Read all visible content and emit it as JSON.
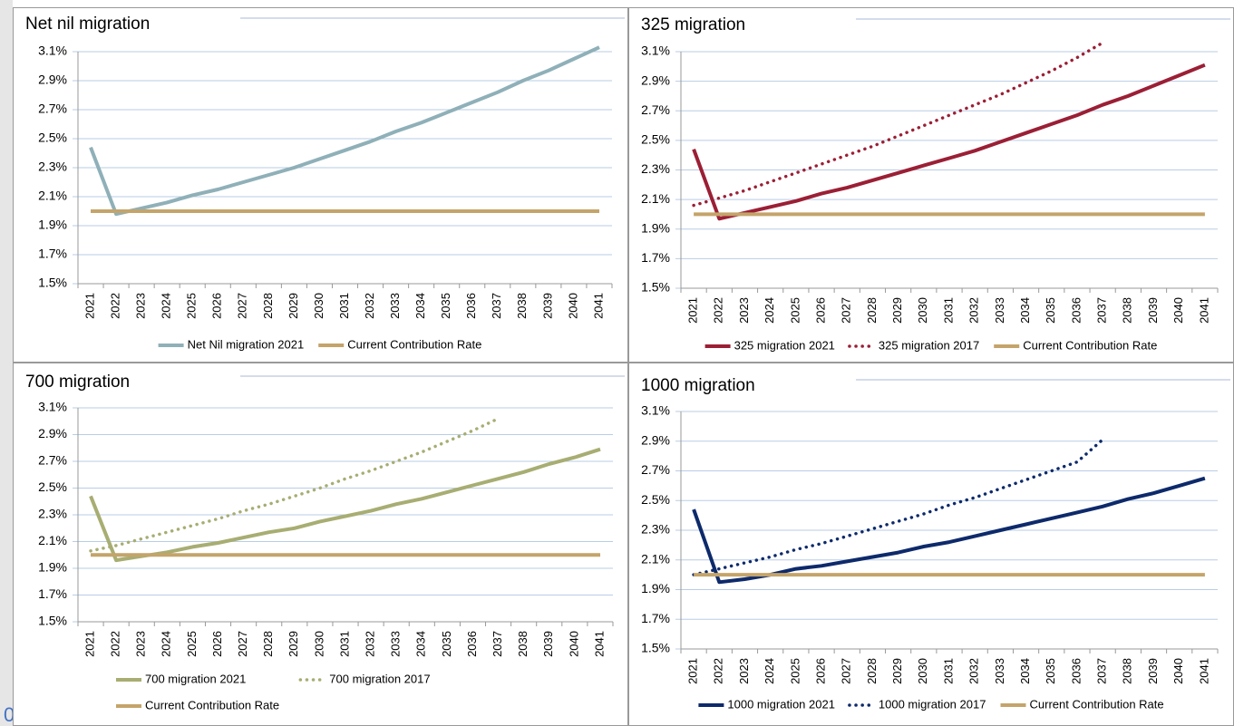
{
  "side_label": "0",
  "chart_data": [
    {
      "type": "line",
      "title": "Net nil migration",
      "categories": [
        "2021",
        "2022",
        "2023",
        "2024",
        "2025",
        "2026",
        "2027",
        "2028",
        "2029",
        "2030",
        "2031",
        "2032",
        "2033",
        "2034",
        "2035",
        "2036",
        "2037",
        "2038",
        "2039",
        "2040",
        "2041"
      ],
      "series": [
        {
          "name": "Net Nil migration 2021",
          "color": "#8fb0b8",
          "style": "solid",
          "values": [
            2.44,
            1.98,
            2.02,
            2.06,
            2.11,
            2.15,
            2.2,
            2.25,
            2.3,
            2.36,
            2.42,
            2.48,
            2.55,
            2.61,
            2.68,
            2.75,
            2.82,
            2.9,
            2.97,
            3.05,
            3.13
          ]
        },
        {
          "name": "Current Contribution Rate",
          "color": "#c4a46a",
          "style": "solid",
          "values": [
            2.0,
            2.0,
            2.0,
            2.0,
            2.0,
            2.0,
            2.0,
            2.0,
            2.0,
            2.0,
            2.0,
            2.0,
            2.0,
            2.0,
            2.0,
            2.0,
            2.0,
            2.0,
            2.0,
            2.0,
            2.0
          ]
        }
      ],
      "ylim": [
        1.5,
        3.1
      ],
      "yticks": [
        {
          "value": 1.5,
          "label": "1.5%"
        },
        {
          "value": 1.7,
          "label": "1.7%"
        },
        {
          "value": 1.9,
          "label": "1.9%"
        },
        {
          "value": 2.1,
          "label": "2.1%"
        },
        {
          "value": 2.3,
          "label": "2.3%"
        },
        {
          "value": 2.5,
          "label": "2.5%"
        },
        {
          "value": 2.7,
          "label": "2.7%"
        },
        {
          "value": 2.9,
          "label": "2.9%"
        },
        {
          "value": 3.1,
          "label": "3.1%"
        }
      ],
      "grid": true,
      "legend": "bottom"
    },
    {
      "type": "line",
      "title": "325 migration",
      "categories": [
        "2021",
        "2022",
        "2023",
        "2024",
        "2025",
        "2026",
        "2027",
        "2028",
        "2029",
        "2030",
        "2031",
        "2032",
        "2033",
        "2034",
        "2035",
        "2036",
        "2037",
        "2038",
        "2039",
        "2040",
        "2041"
      ],
      "series": [
        {
          "name": "325 migration 2021",
          "color": "#9b1f35",
          "style": "solid",
          "values": [
            2.44,
            1.97,
            2.01,
            2.05,
            2.09,
            2.14,
            2.18,
            2.23,
            2.28,
            2.33,
            2.38,
            2.43,
            2.49,
            2.55,
            2.61,
            2.67,
            2.74,
            2.8,
            2.87,
            2.94,
            3.01
          ]
        },
        {
          "name": "325 migration 2017",
          "color": "#9b1f35",
          "style": "dotted",
          "values": [
            2.06,
            2.11,
            2.16,
            2.22,
            2.28,
            2.34,
            2.4,
            2.46,
            2.53,
            2.6,
            2.67,
            2.74,
            2.81,
            2.89,
            2.97,
            3.06,
            3.16,
            null,
            null,
            null,
            null
          ]
        },
        {
          "name": "Current Contribution Rate",
          "color": "#c4a46a",
          "style": "solid",
          "values": [
            2.0,
            2.0,
            2.0,
            2.0,
            2.0,
            2.0,
            2.0,
            2.0,
            2.0,
            2.0,
            2.0,
            2.0,
            2.0,
            2.0,
            2.0,
            2.0,
            2.0,
            2.0,
            2.0,
            2.0,
            2.0
          ]
        }
      ],
      "ylim": [
        1.5,
        3.1
      ],
      "yticks": [
        {
          "value": 1.5,
          "label": "1.5%"
        },
        {
          "value": 1.7,
          "label": "1.7%"
        },
        {
          "value": 1.9,
          "label": "1.9%"
        },
        {
          "value": 2.1,
          "label": "2.1%"
        },
        {
          "value": 2.3,
          "label": "2.3%"
        },
        {
          "value": 2.5,
          "label": "2.5%"
        },
        {
          "value": 2.7,
          "label": "2.7%"
        },
        {
          "value": 2.9,
          "label": "2.9%"
        },
        {
          "value": 3.1,
          "label": "3.1%"
        }
      ],
      "grid": true,
      "legend": "bottom"
    },
    {
      "type": "line",
      "title": "700 migration",
      "categories": [
        "2021",
        "2022",
        "2023",
        "2024",
        "2025",
        "2026",
        "2027",
        "2028",
        "2029",
        "2030",
        "2031",
        "2032",
        "2033",
        "2034",
        "2035",
        "2036",
        "2037",
        "2038",
        "2039",
        "2040",
        "2041"
      ],
      "series": [
        {
          "name": "700 migration 2021",
          "color": "#a8ad72",
          "style": "solid",
          "values": [
            2.44,
            1.96,
            1.99,
            2.02,
            2.06,
            2.09,
            2.13,
            2.17,
            2.2,
            2.25,
            2.29,
            2.33,
            2.38,
            2.42,
            2.47,
            2.52,
            2.57,
            2.62,
            2.68,
            2.73,
            2.79
          ]
        },
        {
          "name": "700 migration 2017",
          "color": "#a8ad72",
          "style": "dotted",
          "values": [
            2.03,
            2.07,
            2.12,
            2.17,
            2.22,
            2.27,
            2.33,
            2.38,
            2.44,
            2.5,
            2.57,
            2.63,
            2.7,
            2.77,
            2.85,
            2.93,
            3.02,
            null,
            null,
            null,
            null
          ]
        },
        {
          "name": "Current Contribution Rate",
          "color": "#c4a46a",
          "style": "solid",
          "values": [
            2.0,
            2.0,
            2.0,
            2.0,
            2.0,
            2.0,
            2.0,
            2.0,
            2.0,
            2.0,
            2.0,
            2.0,
            2.0,
            2.0,
            2.0,
            2.0,
            2.0,
            2.0,
            2.0,
            2.0,
            2.0
          ]
        }
      ],
      "ylim": [
        1.5,
        3.1
      ],
      "yticks": [
        {
          "value": 1.5,
          "label": "1.5%"
        },
        {
          "value": 1.7,
          "label": "1.7%"
        },
        {
          "value": 1.9,
          "label": "1.9%"
        },
        {
          "value": 2.1,
          "label": "2.1%"
        },
        {
          "value": 2.3,
          "label": "2.3%"
        },
        {
          "value": 2.5,
          "label": "2.5%"
        },
        {
          "value": 2.7,
          "label": "2.7%"
        },
        {
          "value": 2.9,
          "label": "2.9%"
        },
        {
          "value": 3.1,
          "label": "3.1%"
        }
      ],
      "grid": true,
      "legend": "bottom"
    },
    {
      "type": "line",
      "title": "1000 migration",
      "categories": [
        "2021",
        "2022",
        "2023",
        "2024",
        "2025",
        "2026",
        "2027",
        "2028",
        "2029",
        "2030",
        "2031",
        "2032",
        "2033",
        "2034",
        "2035",
        "2036",
        "2037",
        "2038",
        "2039",
        "2040",
        "2041"
      ],
      "series": [
        {
          "name": "1000 migration 2021",
          "color": "#0d2a6b",
          "style": "solid",
          "values": [
            2.44,
            1.95,
            1.97,
            2.0,
            2.04,
            2.06,
            2.09,
            2.12,
            2.15,
            2.19,
            2.22,
            2.26,
            2.3,
            2.34,
            2.38,
            2.42,
            2.46,
            2.51,
            2.55,
            2.6,
            2.65
          ]
        },
        {
          "name": "1000 migration 2017",
          "color": "#0d2a6b",
          "style": "dotted",
          "values": [
            2.0,
            2.04,
            2.08,
            2.12,
            2.17,
            2.21,
            2.26,
            2.31,
            2.36,
            2.41,
            2.47,
            2.52,
            2.58,
            2.64,
            2.7,
            2.76,
            2.91,
            null,
            null,
            null,
            null
          ]
        },
        {
          "name": "Current Contribution Rate",
          "color": "#c4a46a",
          "style": "solid",
          "values": [
            2.0,
            2.0,
            2.0,
            2.0,
            2.0,
            2.0,
            2.0,
            2.0,
            2.0,
            2.0,
            2.0,
            2.0,
            2.0,
            2.0,
            2.0,
            2.0,
            2.0,
            2.0,
            2.0,
            2.0,
            2.0
          ]
        }
      ],
      "ylim": [
        1.5,
        3.1
      ],
      "yticks": [
        {
          "value": 1.5,
          "label": "1.5%"
        },
        {
          "value": 1.7,
          "label": "1.7%"
        },
        {
          "value": 1.9,
          "label": "1.9%"
        },
        {
          "value": 2.1,
          "label": "2.1%"
        },
        {
          "value": 2.3,
          "label": "2.3%"
        },
        {
          "value": 2.5,
          "label": "2.5%"
        },
        {
          "value": 2.7,
          "label": "2.7%"
        },
        {
          "value": 2.9,
          "label": "2.9%"
        },
        {
          "value": 3.1,
          "label": "3.1%"
        }
      ],
      "grid": true,
      "legend": "bottom"
    }
  ]
}
